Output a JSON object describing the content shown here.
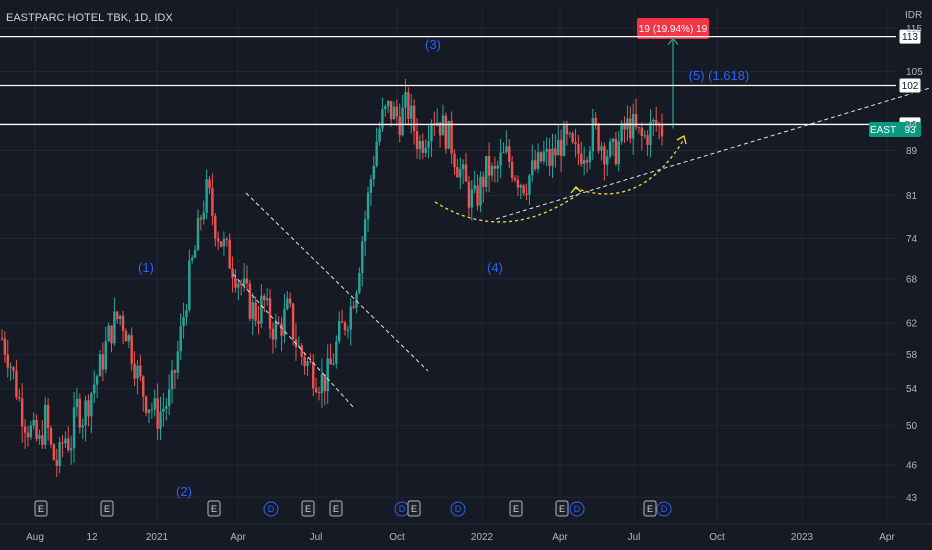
{
  "header": {
    "symbol_title": "EASTPARC HOTEL TBK, 1D, IDX",
    "currency": "IDR"
  },
  "chart_data": {
    "type": "candlestick",
    "title": "EASTPARC HOTEL TBK, 1D, IDX",
    "ylabel": "IDR",
    "ylim": [
      41,
      120
    ],
    "y_scale": "log",
    "y_ticks": [
      43,
      46,
      50,
      54,
      58,
      62,
      68,
      74,
      81,
      89,
      94,
      105,
      115
    ],
    "x_ticks": [
      "Aug",
      "12",
      "2021",
      "Apr",
      "Jul",
      "Oct",
      "2022",
      "Apr",
      "Jul",
      "Oct",
      "2023",
      "Apr"
    ],
    "grid": true,
    "price_closes": [
      60,
      58,
      55,
      52,
      50,
      49,
      48,
      51,
      47,
      46,
      49,
      48,
      52,
      51,
      53,
      55,
      57,
      60,
      62,
      63,
      61,
      58,
      55,
      53,
      52,
      51,
      52,
      53,
      57,
      62,
      68,
      72,
      78,
      82,
      77,
      74,
      72,
      70,
      68,
      66,
      64,
      63,
      65,
      62,
      61,
      62,
      64,
      60,
      58,
      57,
      56,
      55,
      55,
      57,
      60,
      62,
      64,
      68,
      75,
      82,
      90,
      95,
      97,
      96,
      95,
      98,
      94,
      90,
      92,
      96,
      95,
      93,
      91,
      87,
      84,
      81,
      80,
      83,
      86,
      84,
      87,
      88,
      86,
      84,
      83,
      85,
      86,
      88,
      87,
      89,
      91,
      90,
      88,
      89,
      90,
      93,
      91,
      89,
      88,
      90,
      93,
      94,
      92,
      91,
      93,
      94,
      93
    ],
    "horizontal_levels": [
      {
        "label": "113",
        "value": 113
      },
      {
        "label": "102",
        "value": 102
      },
      {
        "label": "94",
        "value": 94
      }
    ],
    "current_price": {
      "label": "EAST",
      "value": "93"
    },
    "projection": {
      "label": "19 (19.94%) 19",
      "from": 94,
      "to": 113
    },
    "wave_labels": [
      "(1)",
      "(2)",
      "(3)",
      "(4)",
      "(5) (1.618)"
    ],
    "events": [
      "E",
      "E",
      "E",
      "D",
      "E",
      "E",
      "D",
      "E",
      "D",
      "E",
      "E",
      "D",
      "E",
      "D"
    ],
    "colors": {
      "up": "#26a69a",
      "down": "#ef5350",
      "wave": "#2962ff",
      "tag": "#f23645",
      "current": "#089981",
      "curve": "#f5e12e"
    }
  }
}
